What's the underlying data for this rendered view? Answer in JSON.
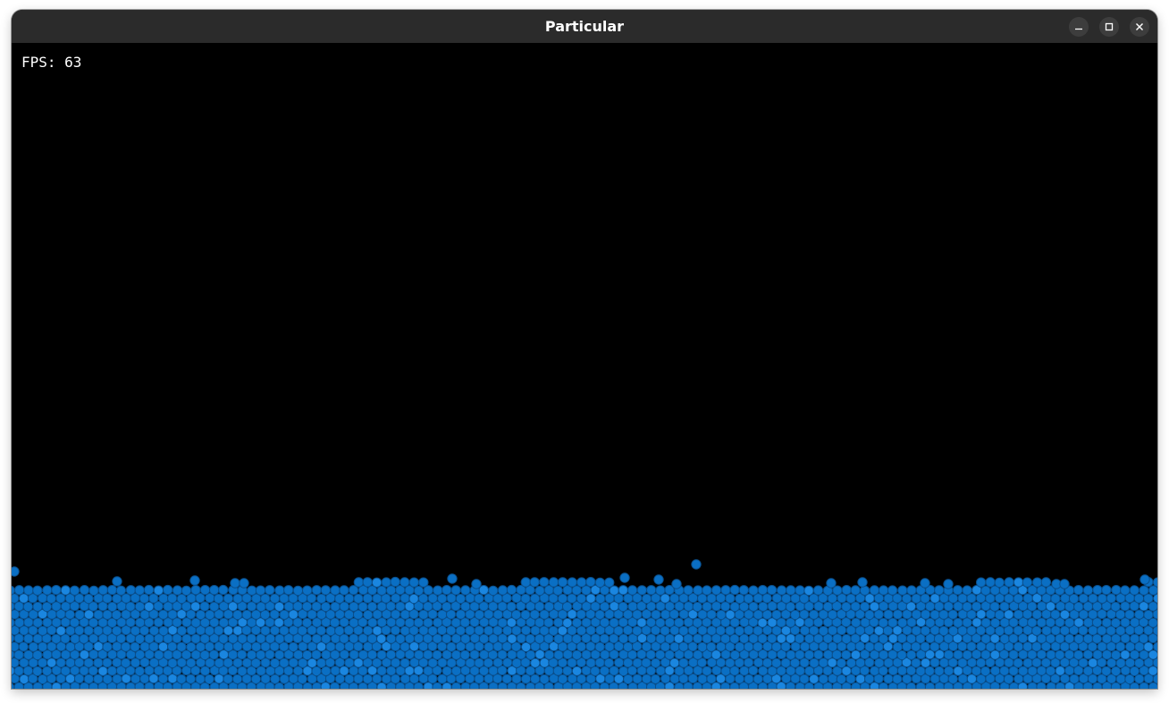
{
  "window": {
    "title": "Particular",
    "buttons": {
      "minimize": "minimize-icon",
      "maximize": "maximize-icon",
      "close": "close-icon"
    }
  },
  "overlay": {
    "fps_label": "FPS: 63"
  },
  "colors": {
    "titlebar_bg": "#2b2b2b",
    "canvas_bg": "#000000",
    "particle_fill": "#0a6fc4",
    "particle_stroke": "#0b4f8c",
    "particle_highlight": "#1a86e0"
  }
}
